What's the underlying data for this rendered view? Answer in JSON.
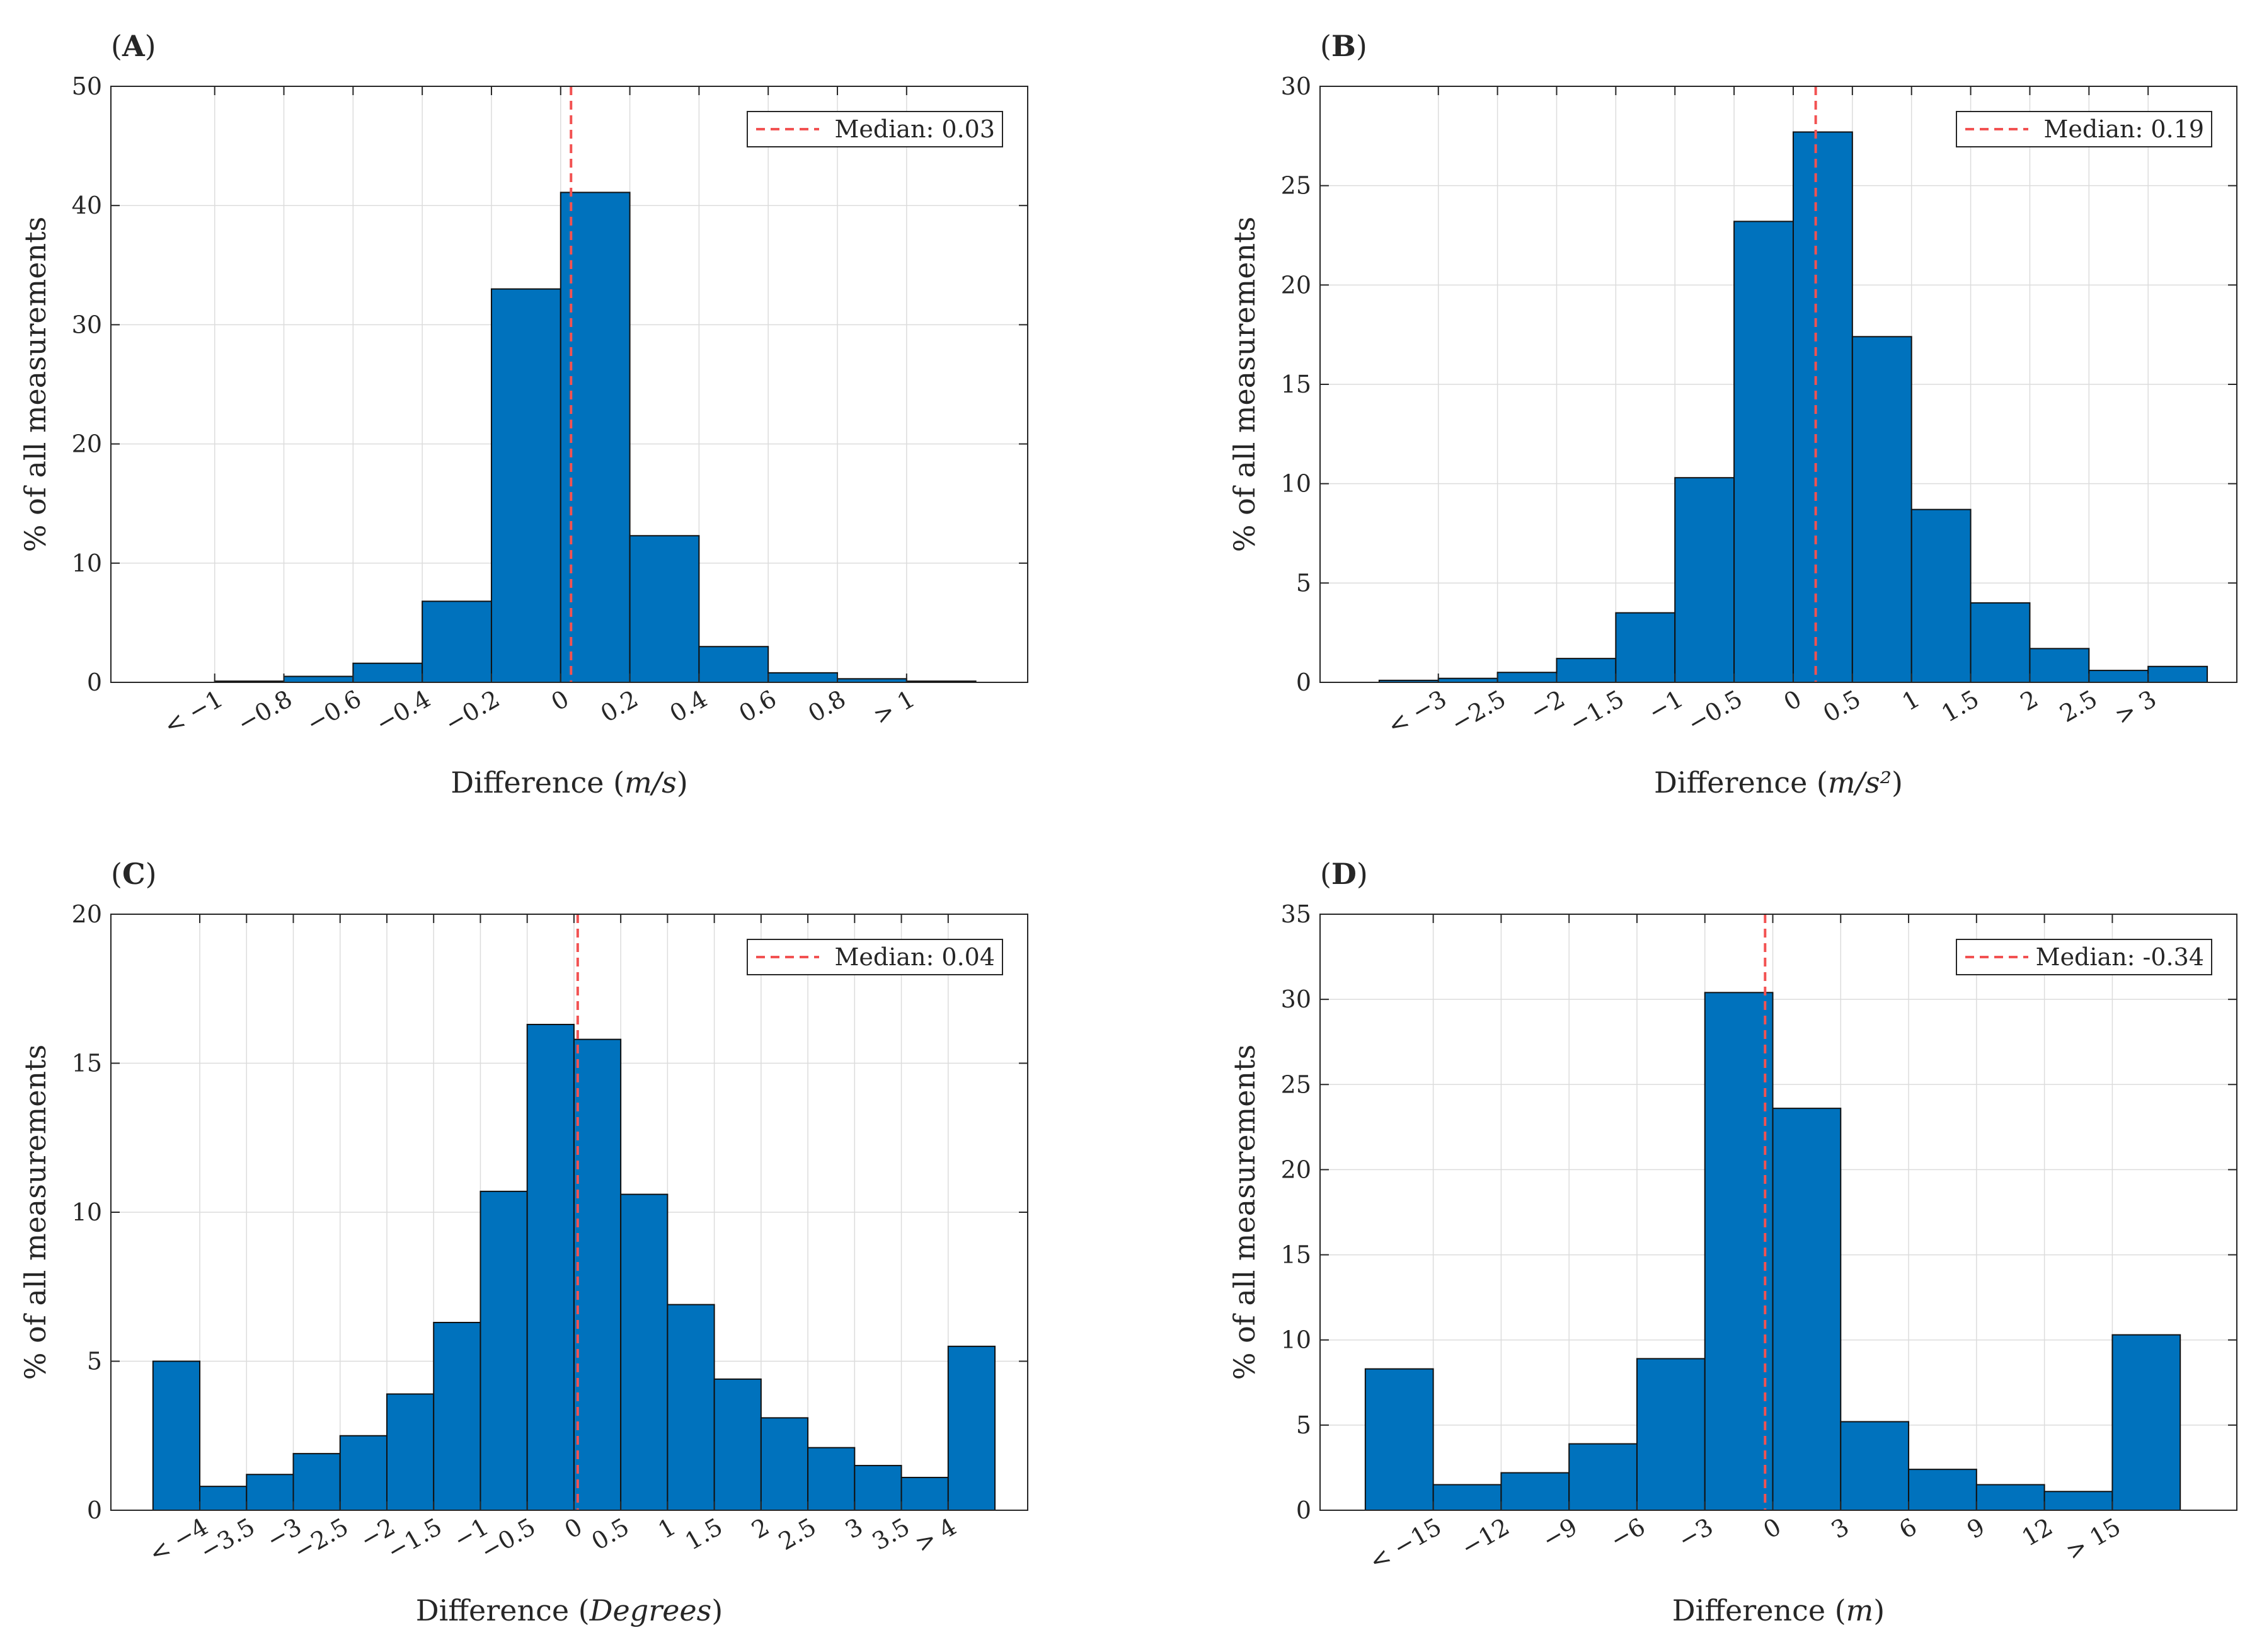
{
  "figure": {
    "style": {
      "bar_color": "#0072BD",
      "bar_edge": "#111111",
      "median_color": "#F25252",
      "grid_color": "#DCDCDC"
    }
  },
  "chart_data": [
    {
      "panel": "(A)",
      "type": "bar",
      "xlabel": "Difference (m/s)",
      "ylabel": "% of all measurements",
      "xlim": [
        -1.3,
        1.35
      ],
      "ylim": [
        0,
        50
      ],
      "yticks": [
        0,
        10,
        20,
        30,
        40,
        50
      ],
      "xticks": [
        -1,
        -0.8,
        -0.6,
        -0.4,
        -0.2,
        0,
        0.2,
        0.4,
        0.6,
        0.8,
        1
      ],
      "xticklabels": [
        "< −1",
        "−0.8",
        "−0.6",
        "−0.4",
        "−0.2",
        "0",
        "0.2",
        "0.4",
        "0.6",
        "0.8",
        "> 1"
      ],
      "bin_edges": [
        -1.2,
        -1.0,
        -0.8,
        -0.6,
        -0.4,
        -0.2,
        0.0,
        0.2,
        0.4,
        0.6,
        0.8,
        1.0,
        1.2
      ],
      "values": [
        0,
        0.1,
        0.5,
        1.6,
        6.8,
        33.0,
        41.1,
        12.3,
        3.0,
        0.8,
        0.3,
        0.1
      ],
      "median": 0.03,
      "median_label": "Median: 0.03"
    },
    {
      "panel": "(B)",
      "type": "bar",
      "xlabel": "Difference (m/s²)",
      "ylabel": "% of all measurements",
      "xlim": [
        -4.0,
        3.75
      ],
      "ylim": [
        0,
        30
      ],
      "yticks": [
        0,
        5,
        10,
        15,
        20,
        25,
        30
      ],
      "xticks": [
        -3,
        -2.5,
        -2,
        -1.5,
        -1,
        -0.5,
        0,
        0.5,
        1,
        1.5,
        2,
        2.5,
        3
      ],
      "xticklabels": [
        "< −3",
        "−2.5",
        "−2",
        "−1.5",
        "−1",
        "−0.5",
        "0",
        "0.5",
        "1",
        "1.5",
        "2",
        "2.5",
        "> 3"
      ],
      "bin_edges": [
        -3.5,
        -3.0,
        -2.5,
        -2.0,
        -1.5,
        -1.0,
        -0.5,
        0.0,
        0.5,
        1.0,
        1.5,
        2.0,
        2.5,
        3.0,
        3.5
      ],
      "values": [
        0.1,
        0.2,
        0.5,
        1.2,
        3.5,
        10.3,
        23.2,
        27.7,
        17.4,
        8.7,
        4.0,
        1.7,
        0.6,
        0.8
      ],
      "median": 0.19,
      "median_label": "Median: 0.19"
    },
    {
      "panel": "(C)",
      "type": "bar",
      "xlabel": "Difference (Degrees)",
      "ylabel": "% of all measurements",
      "xlim": [
        -4.95,
        4.85
      ],
      "ylim": [
        0,
        20
      ],
      "yticks": [
        0,
        5,
        10,
        15,
        20
      ],
      "xticks": [
        -4,
        -3.5,
        -3,
        -2.5,
        -2,
        -1.5,
        -1,
        -0.5,
        0,
        0.5,
        1,
        1.5,
        2,
        2.5,
        3,
        3.5,
        4
      ],
      "xticklabels": [
        "< −4",
        "−3.5",
        "−3",
        "−2.5",
        "−2",
        "−1.5",
        "−1",
        "−0.5",
        "0",
        "0.5",
        "1",
        "1.5",
        "2",
        "2.5",
        "3",
        "3.5",
        "> 4"
      ],
      "bin_edges": [
        -4.5,
        -4.0,
        -3.5,
        -3.0,
        -2.5,
        -2.0,
        -1.5,
        -1.0,
        -0.5,
        0.0,
        0.5,
        1.0,
        1.5,
        2.0,
        2.5,
        3.0,
        3.5,
        4.0,
        4.5
      ],
      "values": [
        5.0,
        0.8,
        1.2,
        1.9,
        2.5,
        3.9,
        6.3,
        10.7,
        16.3,
        15.8,
        10.6,
        6.9,
        4.4,
        3.1,
        2.1,
        1.5,
        1.1,
        5.5
      ],
      "median": 0.04,
      "median_label": "Median: 0.04"
    },
    {
      "panel": "(D)",
      "type": "bar",
      "xlabel": "Difference (m)",
      "ylabel": "% of all measurements",
      "xlim": [
        -20.0,
        20.5
      ],
      "ylim": [
        0,
        35
      ],
      "yticks": [
        0,
        5,
        10,
        15,
        20,
        25,
        30,
        35
      ],
      "xticks": [
        -15,
        -12,
        -9,
        -6,
        -3,
        0,
        3,
        6,
        9,
        12,
        15
      ],
      "xticklabels": [
        "< −15",
        "−12",
        "−9",
        "−6",
        "−3",
        "0",
        "3",
        "6",
        "9",
        "12",
        "> 15"
      ],
      "bin_edges": [
        -18,
        -15,
        -12,
        -9,
        -6,
        -3,
        0,
        3,
        6,
        9,
        12,
        15,
        18
      ],
      "values": [
        8.3,
        1.5,
        2.2,
        3.9,
        8.9,
        30.4,
        23.6,
        5.2,
        2.4,
        1.5,
        1.1,
        10.3
      ],
      "median": -0.34,
      "median_label": "Median: -0.34"
    }
  ]
}
